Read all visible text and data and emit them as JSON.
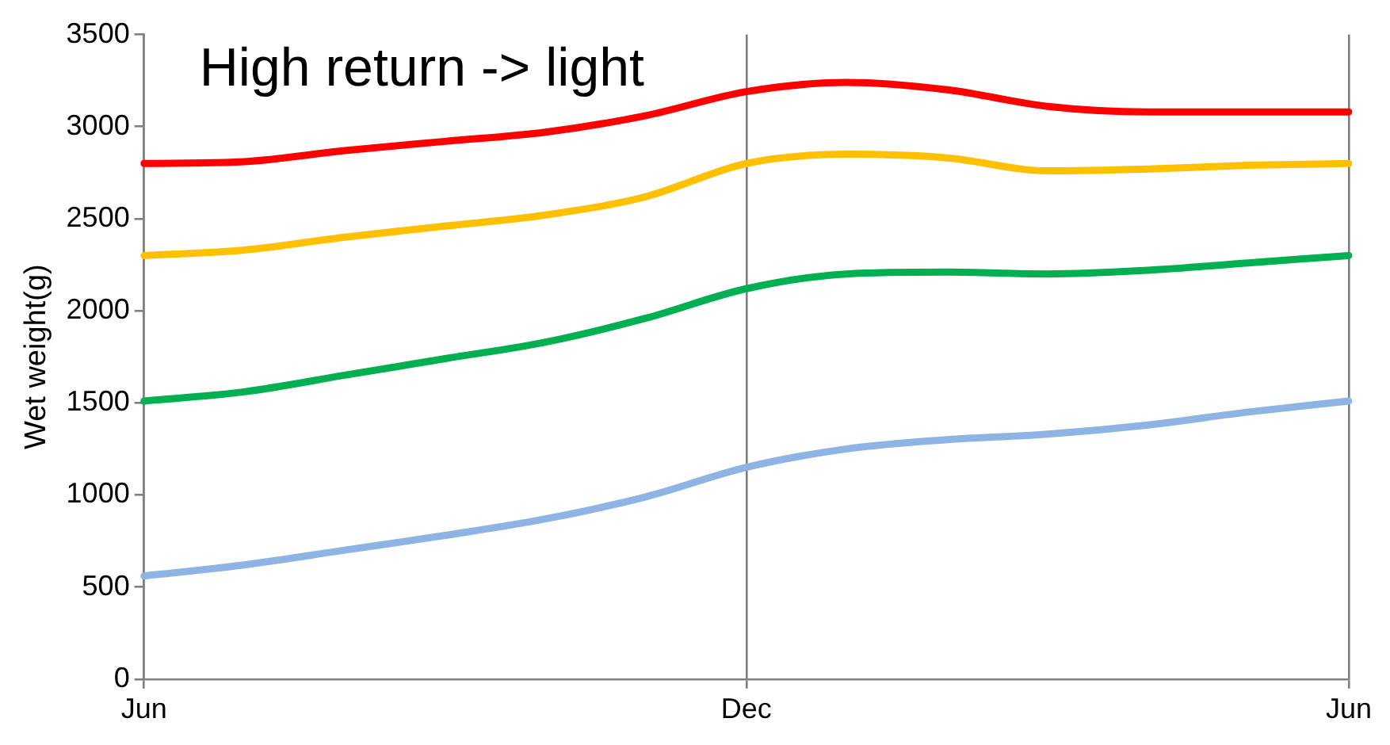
{
  "chart_data": {
    "type": "line",
    "ylabel": "Wet weight(g)",
    "annotations": [
      "High return -> light"
    ],
    "categories": [
      "Jun",
      null,
      null,
      null,
      null,
      null,
      "Dec",
      null,
      null,
      null,
      null,
      null,
      "Jun"
    ],
    "series": [
      {
        "color": "#ff0000",
        "values": [
          2800,
          2810,
          2870,
          2920,
          2970,
          3060,
          3190,
          3240,
          3200,
          3110,
          3080,
          3080,
          3080
        ]
      },
      {
        "color": "#ffc000",
        "values": [
          2300,
          2330,
          2400,
          2460,
          2520,
          2620,
          2800,
          2850,
          2830,
          2760,
          2770,
          2790,
          2800
        ]
      },
      {
        "color": "#00b050",
        "values": [
          1510,
          1560,
          1650,
          1740,
          1830,
          1960,
          2120,
          2200,
          2210,
          2200,
          2220,
          2260,
          2300
        ]
      },
      {
        "color": "#8db4e2",
        "values": [
          560,
          620,
          700,
          780,
          870,
          990,
          1150,
          1250,
          1300,
          1330,
          1380,
          1450,
          1510
        ]
      }
    ],
    "ylim": [
      0,
      3500
    ],
    "yticks": [
      0,
      500,
      1000,
      1500,
      2000,
      2500,
      3000,
      3500
    ],
    "grid": "x",
    "legend": false,
    "marker": "none",
    "line_style": "solid"
  }
}
